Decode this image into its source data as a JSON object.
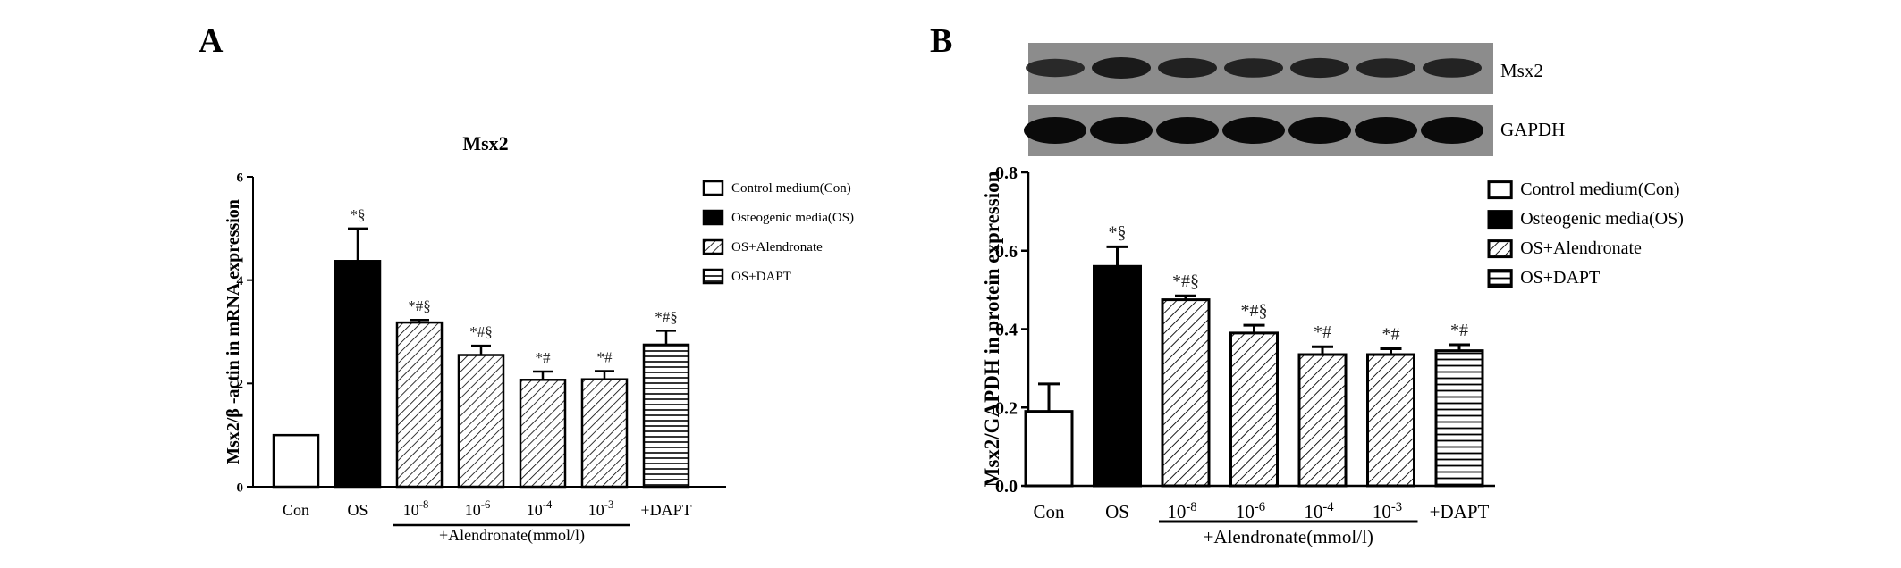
{
  "chart_data": [
    {
      "panel": "A",
      "type": "bar",
      "title": "Msx2",
      "ylabel": "Msx2/β -actin in mRNA expression",
      "ylim": [
        0,
        6
      ],
      "yticks": [
        "0",
        "2",
        "4",
        "6"
      ],
      "categories": [
        "Con",
        "OS",
        "10-8",
        "10-6",
        "10-4",
        "10-3",
        "+DAPT"
      ],
      "values": [
        1.0,
        4.37,
        3.18,
        2.55,
        2.07,
        2.08,
        2.75
      ],
      "errors": [
        0.0,
        0.63,
        0.05,
        0.18,
        0.16,
        0.16,
        0.27
      ],
      "annotations": [
        "",
        "*§",
        "*#§",
        "*#§",
        "*#",
        "*#",
        "*#§"
      ],
      "patterns": [
        "white",
        "black",
        "diag",
        "diag",
        "diag",
        "diag",
        "horiz"
      ],
      "group_label": "+Alendronate(mmol/l)",
      "legend": [
        "Control medium(Con)",
        "Osteogenic media(OS)",
        "OS+Alendronate",
        "OS+DAPT"
      ]
    },
    {
      "panel": "B",
      "type": "bar",
      "title": "",
      "ylabel": "Msx2/GAPDH in protein expression",
      "ylim": [
        0,
        0.8
      ],
      "yticks": [
        "0.0",
        "0.2",
        "0.4",
        "0.6",
        "0.8"
      ],
      "categories": [
        "Con",
        "OS",
        "10-8",
        "10-6",
        "10-4",
        "10-3",
        "+DAPT"
      ],
      "values": [
        0.19,
        0.56,
        0.475,
        0.39,
        0.335,
        0.335,
        0.345
      ],
      "errors": [
        0.07,
        0.05,
        0.01,
        0.02,
        0.02,
        0.015,
        0.015
      ],
      "annotations": [
        "",
        "*§",
        "*#§",
        "*#§",
        "*#",
        "*#",
        "*#"
      ],
      "patterns": [
        "white",
        "black",
        "diag",
        "diag",
        "diag",
        "diag",
        "horiz"
      ],
      "group_label": "+Alendronate(mmol/l)",
      "legend": [
        "Control medium(Con)",
        "Osteogenic media(OS)",
        "OS+Alendronate",
        "OS+DAPT"
      ],
      "blot_labels": [
        "Msx2",
        "GAPDH"
      ]
    }
  ],
  "panel_labels": [
    "A",
    "B"
  ]
}
